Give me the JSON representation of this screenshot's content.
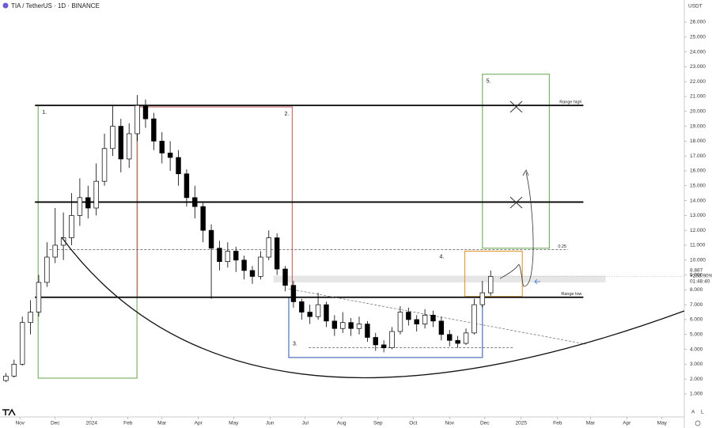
{
  "chart_data": {
    "type": "candlestick",
    "title": "TIA / TetherUS · 1D · BINANCE",
    "currency": "USDT",
    "scale_buttons": [
      "A",
      "L"
    ],
    "color": "#000000",
    "xlim": [
      -17,
      566
    ],
    "xticks": [
      {
        "value": 0,
        "label": "Nov"
      },
      {
        "value": 30,
        "label": "Dec"
      },
      {
        "value": 61,
        "label": "2024"
      },
      {
        "value": 92,
        "label": "Feb"
      },
      {
        "value": 121,
        "label": "Mar"
      },
      {
        "value": 152,
        "label": "Apr"
      },
      {
        "value": 182,
        "label": "May"
      },
      {
        "value": 213,
        "label": "Jun"
      },
      {
        "value": 243,
        "label": "Jul"
      },
      {
        "value": 274,
        "label": "Aug"
      },
      {
        "value": 305,
        "label": "Sep"
      },
      {
        "value": 335,
        "label": "Oct"
      },
      {
        "value": 366,
        "label": "Nov"
      },
      {
        "value": 396,
        "label": "Dec"
      },
      {
        "value": 427,
        "label": "2025"
      },
      {
        "value": 458,
        "label": "Feb"
      },
      {
        "value": 486,
        "label": "Mar"
      },
      {
        "value": 517,
        "label": "Apr"
      },
      {
        "value": 547,
        "label": "May"
      }
    ],
    "ylim": [
      -0.44,
      27.49
    ],
    "yticks": [
      {
        "value": 1,
        "label": "1.000"
      },
      {
        "value": 2,
        "label": "2.000"
      },
      {
        "value": 3,
        "label": "3.000"
      },
      {
        "value": 4,
        "label": "4.000"
      },
      {
        "value": 5,
        "label": "5.000"
      },
      {
        "value": 6,
        "label": "6.000"
      },
      {
        "value": 7,
        "label": "7.000"
      },
      {
        "value": 8,
        "label": "8.000"
      },
      {
        "value": 9,
        "label": "9.000"
      },
      {
        "value": 10,
        "label": "10.000"
      },
      {
        "value": 11,
        "label": "11.000"
      },
      {
        "value": 12,
        "label": "12.000"
      },
      {
        "value": 13,
        "label": "13.000"
      },
      {
        "value": 14,
        "label": "14.000"
      },
      {
        "value": 15,
        "label": "15.000"
      },
      {
        "value": 16,
        "label": "16.000"
      },
      {
        "value": 17,
        "label": "17.000"
      },
      {
        "value": 18,
        "label": "18.000"
      },
      {
        "value": 19,
        "label": "19.000"
      },
      {
        "value": 20,
        "label": "20.000"
      },
      {
        "value": 21,
        "label": "21.000"
      },
      {
        "value": 22,
        "label": "22.000"
      },
      {
        "value": 23,
        "label": "23.000"
      },
      {
        "value": 24,
        "label": "24.000"
      },
      {
        "value": 25,
        "label": "25.000"
      },
      {
        "value": 26,
        "label": "26.000"
      }
    ],
    "x": [
      -12,
      -5,
      2,
      9,
      16,
      23,
      30,
      37,
      44,
      51,
      58,
      65,
      72,
      79,
      86,
      93,
      100,
      107,
      114,
      121,
      128,
      135,
      142,
      149,
      156,
      163,
      170,
      177,
      184,
      191,
      198,
      205,
      212,
      219,
      226,
      233,
      240,
      247,
      254,
      261,
      268,
      275,
      282,
      289,
      296,
      303,
      310,
      317,
      324,
      331,
      338,
      345,
      352,
      359,
      366,
      373,
      380,
      387,
      394,
      401
    ],
    "open": [
      1.9,
      2.2,
      3.0,
      5.8,
      6.5,
      8.5,
      10.2,
      11.0,
      11.5,
      13.0,
      14.2,
      13.5,
      15.3,
      17.5,
      19.0,
      16.8,
      18.5,
      20.4,
      19.5,
      18.0,
      17.2,
      16.9,
      15.8,
      14.2,
      13.6,
      12.0,
      10.8,
      9.9,
      10.6,
      10.0,
      9.3,
      8.9,
      10.2,
      11.5,
      9.4,
      8.3,
      7.2,
      6.5,
      6.2,
      7.0,
      5.9,
      5.4,
      5.8,
      5.4,
      5.7,
      4.8,
      4.3,
      4.1,
      5.2,
      6.5,
      6.0,
      5.7,
      6.3,
      5.9,
      5.0,
      4.6,
      4.4,
      5.1,
      7.0,
      7.8
    ],
    "high": [
      2.4,
      3.3,
      6.2,
      7.3,
      9.0,
      11.2,
      13.5,
      13.2,
      14.5,
      15.5,
      15.0,
      16.5,
      18.5,
      20.4,
      19.5,
      19.2,
      21.1,
      20.8,
      19.9,
      18.6,
      18.0,
      17.4,
      16.1,
      15.0,
      13.9,
      12.4,
      11.3,
      11.2,
      10.9,
      10.3,
      9.6,
      10.6,
      12.0,
      11.8,
      9.6,
      8.6,
      7.4,
      7.0,
      7.8,
      7.2,
      6.3,
      6.5,
      6.1,
      6.2,
      5.9,
      5.1,
      4.6,
      5.5,
      6.9,
      6.8,
      6.3,
      6.7,
      6.6,
      6.2,
      5.3,
      4.9,
      5.4,
      7.4,
      8.6,
      9.3
    ],
    "low": [
      1.8,
      2.1,
      2.9,
      5.0,
      6.2,
      8.2,
      9.8,
      10.0,
      11.0,
      12.3,
      12.8,
      13.0,
      15.0,
      17.0,
      15.9,
      16.2,
      18.0,
      18.9,
      17.4,
      16.5,
      16.0,
      15.0,
      13.6,
      12.8,
      11.2,
      7.4,
      9.3,
      9.5,
      9.2,
      8.7,
      8.4,
      8.7,
      10.0,
      9.0,
      7.9,
      6.8,
      6.0,
      5.7,
      6.0,
      5.5,
      4.9,
      5.1,
      4.9,
      5.0,
      4.5,
      3.9,
      3.8,
      4.0,
      5.0,
      5.6,
      5.2,
      5.4,
      5.5,
      4.6,
      4.2,
      4.1,
      4.3,
      5.0,
      6.8,
      7.6
    ],
    "close": [
      2.2,
      3.0,
      5.8,
      6.5,
      8.5,
      10.2,
      11.0,
      11.5,
      13.0,
      14.2,
      13.5,
      15.3,
      17.5,
      19.0,
      16.8,
      18.5,
      20.4,
      19.5,
      18.0,
      17.2,
      16.9,
      15.8,
      14.2,
      13.6,
      12.0,
      10.8,
      9.9,
      10.6,
      10.0,
      9.3,
      8.9,
      10.2,
      11.5,
      9.4,
      8.3,
      7.2,
      6.5,
      6.2,
      7.0,
      5.9,
      5.4,
      5.8,
      5.4,
      5.7,
      4.8,
      4.3,
      4.1,
      5.2,
      6.5,
      6.0,
      5.7,
      6.3,
      5.9,
      5.0,
      4.6,
      4.4,
      5.1,
      7.0,
      7.8,
      8.9
    ],
    "levels": [
      {
        "value": 20.4,
        "label": "Range high",
        "xlim": [
          12.8,
          480
        ],
        "style": "solid"
      },
      {
        "value": 13.9,
        "xlim": [
          12.8,
          480
        ],
        "style": "solid"
      },
      {
        "value": 7.5,
        "label": "Range low",
        "xlim": [
          12.8,
          480
        ],
        "style": "solid"
      },
      {
        "value": 10.7,
        "label": "0.25",
        "xlim": [
          25,
          467
        ],
        "style": "dashed"
      },
      {
        "value": 4.1,
        "xlim": [
          246,
          420
        ],
        "style": "dashed"
      }
    ],
    "boxes": [
      {
        "label": "1.",
        "color": "#7cb36a",
        "xlim": [
          15.5,
          99.7
        ],
        "ylim": [
          2.06,
          20.4
        ]
      },
      {
        "label": "2.",
        "color": "#c9706f",
        "xlim": [
          100,
          232
        ],
        "ylim": [
          7.5,
          20.3
        ]
      },
      {
        "label": "3.",
        "color": "#4a70b8",
        "xlim": [
          229,
          394
        ],
        "ylim": [
          3.45,
          7.5
        ]
      },
      {
        "label": "4.",
        "color": "#e0a040",
        "xlim": [
          379,
          428
        ],
        "ylim": [
          7.55,
          10.6
        ]
      },
      {
        "label": "5.",
        "color": "#7cb36a",
        "xlim": [
          394,
          451
        ],
        "ylim": [
          10.8,
          22.5
        ]
      }
    ],
    "trendline": {
      "x": [
        229,
        482
      ],
      "y": [
        8.07,
        4.35
      ]
    },
    "zone": {
      "xlim": [
        216,
        499
      ],
      "ylim": [
        8.5,
        8.95
      ]
    },
    "last_price": {
      "value": 8.887,
      "change": "+208.90%",
      "countdown": "01:48:40"
    }
  }
}
